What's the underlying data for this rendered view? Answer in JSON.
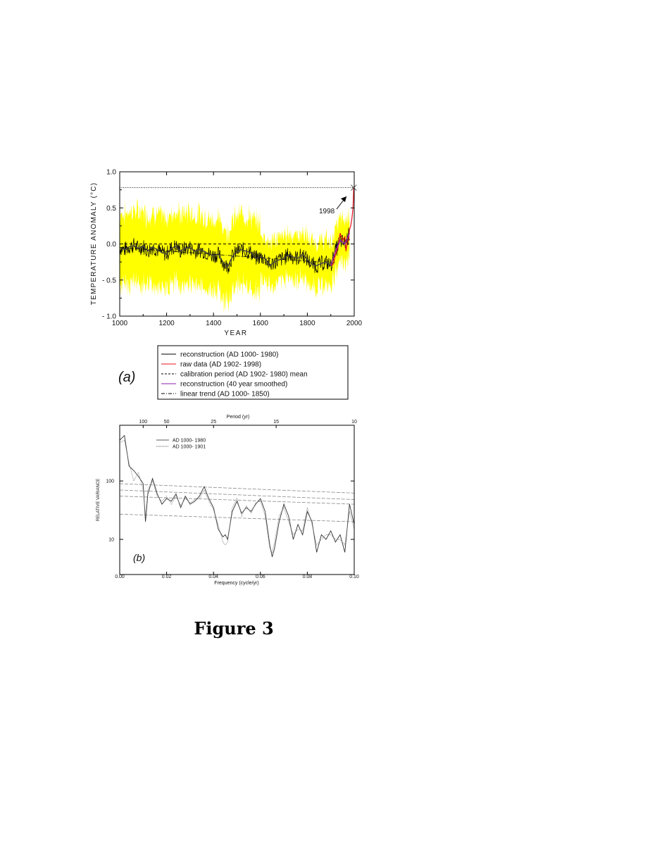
{
  "figure_caption": "Figure 3",
  "colors": {
    "envelope": "#ffff00",
    "reconstruction": "#000000",
    "raw": "#e8111e",
    "smoothed": "#8a1aa8",
    "axes": "#000000"
  },
  "chart_data": [
    {
      "panel_label": "(a)",
      "type": "line",
      "ylabel": "TEMPERATURE ANOMALY (°C)",
      "xlabel": "YEAR",
      "xlim": [
        1000,
        2000
      ],
      "ylim": [
        -1.0,
        1.0
      ],
      "x_ticks": [
        1000,
        1200,
        1400,
        1600,
        1800,
        2000
      ],
      "y_ticks": [
        {
          "value": 1.0,
          "label": "1.0"
        },
        {
          "value": 0.5,
          "label": "0.5"
        },
        {
          "value": 0.0,
          "label": "0.0"
        },
        {
          "value": -0.5,
          "label": "- 0.5"
        },
        {
          "value": -1.0,
          "label": "- 1.0"
        }
      ],
      "annotation": {
        "text": "1998",
        "x": 1998,
        "y": 0.78
      },
      "reference_line_1998": 0.78,
      "calibration_mean": 0.0,
      "legend": [
        {
          "label": "reconstruction (AD 1000- 1980)",
          "style": "solid",
          "color": "#000000"
        },
        {
          "label": "raw data (AD 1902- 1998)",
          "style": "solid",
          "color": "#e8111e"
        },
        {
          "label": "calibration period (AD 1902- 1980) mean",
          "style": "dashed",
          "color": "#000000"
        },
        {
          "label": "reconstruction (40 year smoothed)",
          "style": "solid",
          "color": "#8a1aa8"
        },
        {
          "label": "linear trend (AD 1000- 1850)",
          "style": "dashdot",
          "color": "#000000"
        }
      ],
      "smoothed_series": {
        "x": [
          1000,
          1020,
          1040,
          1060,
          1080,
          1100,
          1120,
          1140,
          1160,
          1180,
          1200,
          1220,
          1240,
          1260,
          1280,
          1300,
          1320,
          1340,
          1360,
          1380,
          1400,
          1420,
          1440,
          1460,
          1480,
          1500,
          1520,
          1540,
          1560,
          1580,
          1600,
          1620,
          1640,
          1660,
          1680,
          1700,
          1720,
          1740,
          1760,
          1780,
          1800,
          1820,
          1840,
          1860,
          1880,
          1900,
          1920,
          1940,
          1960,
          1980
        ],
        "y": [
          -0.05,
          -0.08,
          -0.04,
          -0.02,
          -0.06,
          -0.03,
          -0.1,
          -0.04,
          -0.08,
          -0.12,
          -0.14,
          -0.06,
          -0.03,
          -0.1,
          -0.06,
          -0.05,
          -0.1,
          -0.08,
          -0.1,
          -0.14,
          -0.16,
          -0.14,
          -0.25,
          -0.32,
          -0.18,
          -0.1,
          -0.08,
          -0.1,
          -0.12,
          -0.2,
          -0.18,
          -0.2,
          -0.3,
          -0.25,
          -0.22,
          -0.2,
          -0.15,
          -0.18,
          -0.2,
          -0.14,
          -0.22,
          -0.28,
          -0.3,
          -0.27,
          -0.25,
          -0.3,
          -0.1,
          0.05,
          0.0,
          0.15
        ]
      },
      "raw_series": {
        "x": [
          1902,
          1910,
          1920,
          1930,
          1940,
          1950,
          1960,
          1965,
          1970,
          1975,
          1980,
          1985,
          1990,
          1995,
          1998
        ],
        "y": [
          -0.3,
          -0.28,
          -0.15,
          -0.05,
          0.15,
          0.05,
          0.1,
          -0.1,
          0.02,
          0.05,
          0.2,
          0.25,
          0.35,
          0.5,
          0.78
        ]
      },
      "trend": {
        "x": [
          1000,
          1850
        ],
        "y": [
          -0.05,
          -0.25
        ]
      }
    },
    {
      "panel_label": "(b)",
      "type": "line",
      "ylabel": "RELATIVE VARIANCE",
      "xlabel": "Frequency (cycle/yr)",
      "top_axis_label": "Period (yr)",
      "xlim": [
        0.0,
        0.1
      ],
      "ylim_log": [
        2.5,
        900
      ],
      "y_scale": "log",
      "x_ticks": [
        {
          "value": 0.0,
          "label": "0.00"
        },
        {
          "value": 0.02,
          "label": "0.02"
        },
        {
          "value": 0.04,
          "label": "0.04"
        },
        {
          "value": 0.06,
          "label": "0.06"
        },
        {
          "value": 0.08,
          "label": "0.08"
        },
        {
          "value": 0.1,
          "label": "0.10"
        }
      ],
      "y_ticks": [
        {
          "value": 10,
          "label": "10"
        },
        {
          "value": 100,
          "label": "100"
        }
      ],
      "top_ticks": [
        {
          "value": 0.01,
          "label": "100"
        },
        {
          "value": 0.02,
          "label": "50"
        },
        {
          "value": 0.04,
          "label": "25"
        },
        {
          "value": 0.0667,
          "label": "15"
        },
        {
          "value": 0.1,
          "label": "10"
        }
      ],
      "legend": [
        {
          "label": "AD 1000- 1980",
          "style": "solid"
        },
        {
          "label": "AD 1000- 1901",
          "style": "dotted"
        }
      ],
      "series": [
        {
          "name": "AD 1000- 1980",
          "x": [
            0.0,
            0.002,
            0.004,
            0.006,
            0.008,
            0.01,
            0.011,
            0.012,
            0.014,
            0.016,
            0.018,
            0.02,
            0.022,
            0.024,
            0.026,
            0.028,
            0.03,
            0.032,
            0.034,
            0.036,
            0.038,
            0.04,
            0.042,
            0.044,
            0.045,
            0.046,
            0.048,
            0.05,
            0.052,
            0.054,
            0.056,
            0.058,
            0.06,
            0.062,
            0.064,
            0.065,
            0.066,
            0.068,
            0.07,
            0.072,
            0.074,
            0.076,
            0.078,
            0.08,
            0.082,
            0.084,
            0.086,
            0.088,
            0.09,
            0.092,
            0.094,
            0.096,
            0.098,
            0.1
          ],
          "y": [
            500,
            600,
            180,
            150,
            120,
            90,
            20,
            60,
            110,
            60,
            40,
            50,
            45,
            60,
            35,
            55,
            40,
            45,
            55,
            80,
            50,
            35,
            15,
            11,
            12,
            10,
            30,
            45,
            28,
            35,
            30,
            40,
            50,
            30,
            8,
            5,
            7,
            20,
            40,
            25,
            10,
            18,
            12,
            30,
            20,
            6,
            12,
            10,
            14,
            9,
            12,
            6,
            40,
            18
          ]
        },
        {
          "name": "AD 1000- 1901",
          "x": [
            0.0,
            0.002,
            0.004,
            0.006,
            0.008,
            0.01,
            0.011,
            0.012,
            0.014,
            0.016,
            0.018,
            0.02,
            0.022,
            0.024,
            0.026,
            0.028,
            0.03,
            0.032,
            0.034,
            0.036,
            0.038,
            0.04,
            0.042,
            0.044,
            0.045,
            0.046,
            0.048,
            0.05,
            0.052,
            0.054,
            0.056,
            0.058,
            0.06,
            0.062,
            0.064,
            0.065,
            0.066,
            0.068,
            0.07,
            0.072,
            0.074,
            0.076,
            0.078,
            0.08,
            0.082,
            0.084,
            0.086,
            0.088,
            0.09,
            0.092,
            0.094,
            0.096,
            0.098,
            0.1
          ],
          "y": [
            450,
            500,
            200,
            100,
            140,
            70,
            25,
            70,
            100,
            55,
            45,
            55,
            40,
            55,
            38,
            50,
            42,
            48,
            50,
            70,
            45,
            32,
            18,
            9,
            8,
            9,
            35,
            50,
            25,
            38,
            28,
            42,
            45,
            25,
            7,
            6,
            9,
            25,
            35,
            20,
            12,
            15,
            14,
            35,
            18,
            8,
            10,
            12,
            12,
            10,
            10,
            8,
            30,
            15
          ]
        }
      ],
      "reference_lines": [
        {
          "y_start": 90,
          "y_end": 62
        },
        {
          "y_start": 70,
          "y_end": 48
        },
        {
          "y_start": 55,
          "y_end": 40
        },
        {
          "y_start": 27,
          "y_end": 20
        }
      ]
    }
  ]
}
